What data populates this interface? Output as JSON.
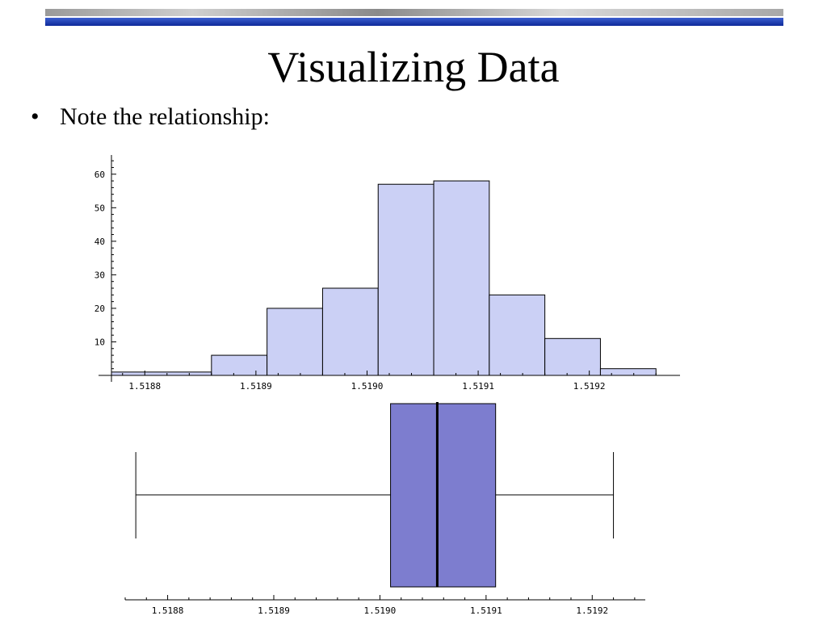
{
  "slide": {
    "title": "Visualizing Data",
    "bullet": "•",
    "bullet_text": "Note the relationship:"
  },
  "colors": {
    "histogram_fill": "#cbd0f5",
    "boxplot_fill": "#7d7dcf",
    "top_bar_blue": "#1a3aa8"
  },
  "chart_data": [
    {
      "type": "bar",
      "chart": "histogram",
      "bins": [
        {
          "start": 1.51877,
          "end": 1.51886,
          "count": 1
        },
        {
          "start": 1.51886,
          "end": 1.51891,
          "count": 6
        },
        {
          "start": 1.51891,
          "end": 1.51896,
          "count": 20
        },
        {
          "start": 1.51896,
          "end": 1.51901,
          "count": 26
        },
        {
          "start": 1.51901,
          "end": 1.51906,
          "count": 57
        },
        {
          "start": 1.51906,
          "end": 1.51911,
          "count": 58
        },
        {
          "start": 1.51911,
          "end": 1.51916,
          "count": 24
        },
        {
          "start": 1.51916,
          "end": 1.51921,
          "count": 11
        },
        {
          "start": 1.51921,
          "end": 1.51926,
          "count": 2
        }
      ],
      "xlim": [
        1.51877,
        1.51927
      ],
      "ylim": [
        0,
        65
      ],
      "x_ticks": [
        1.5188,
        1.5189,
        1.519,
        1.5191,
        1.5192
      ],
      "x_tick_labels": [
        "1.5188",
        "1.5189",
        "1.5190",
        "1.5191",
        "1.5192"
      ],
      "y_ticks": [
        10,
        20,
        30,
        40,
        50,
        60
      ],
      "y_tick_labels": [
        "10",
        "20",
        "30",
        "40",
        "50",
        "60"
      ],
      "grid": false
    },
    {
      "type": "boxplot",
      "min": 1.51877,
      "q1": 1.51901,
      "median": 1.519054,
      "q3": 1.519109,
      "max": 1.51922,
      "xlim": [
        1.51876,
        1.51925
      ],
      "x_ticks": [
        1.5188,
        1.5189,
        1.519,
        1.5191,
        1.5192
      ],
      "x_tick_labels": [
        "1.5188",
        "1.5189",
        "1.5190",
        "1.5191",
        "1.5192"
      ],
      "grid": false
    }
  ]
}
